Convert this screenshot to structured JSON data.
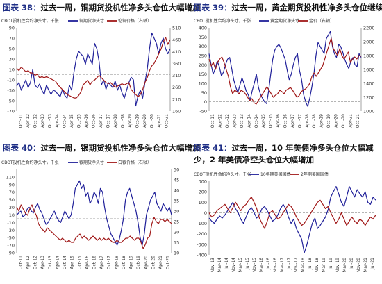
{
  "chart_data": [
    {
      "type": "line",
      "title_prefix": "图表 38：",
      "title": "过去一周，铜期货投机性净多头仓位大幅增加",
      "ylabel": "CBOT投机性合约净头寸，千张",
      "legend": [
        "铜期货净头寸",
        "伦铜价格（右轴）"
      ],
      "legend_position": "top-right",
      "ylim": [
        -70,
        90
      ],
      "yticks": [
        90,
        70,
        50,
        30,
        10,
        -10,
        -30,
        -50,
        -70
      ],
      "y2lim": [
        160,
        510
      ],
      "y2ticks": [
        510,
        460,
        410,
        360,
        310,
        260,
        210,
        160
      ],
      "x_ticks": [
        "Oct-11",
        "Apr-12",
        "Oct-12",
        "Apr-13",
        "Oct-13",
        "Apr-14",
        "Oct-14",
        "Apr-15",
        "Oct-15",
        "Apr-16",
        "Oct-16",
        "Apr-17",
        "Oct-17",
        "Apr-18",
        "Oct-18",
        "Apr-19",
        "Oct-19",
        "Apr-20",
        "Oct-20",
        "Apr-21",
        "Oct-21"
      ],
      "series": [
        {
          "name": "铜期货净头寸",
          "axis": "left",
          "color": "#1f1f99",
          "values": [
            -22,
            -15,
            -30,
            -20,
            -10,
            -25,
            -15,
            10,
            -20,
            -25,
            -18,
            -30,
            -38,
            -20,
            -30,
            -38,
            -30,
            -32,
            -38,
            -42,
            -28,
            -40,
            -45,
            -20,
            -30,
            5,
            30,
            45,
            40,
            35,
            20,
            40,
            30,
            20,
            60,
            50,
            25,
            -20,
            -10,
            -28,
            -15,
            -20,
            -25,
            -12,
            -30,
            -20,
            -35,
            -45,
            -30,
            -15,
            -5,
            -10,
            -60,
            -40,
            -30,
            -45,
            -15,
            10,
            50,
            80,
            70,
            60,
            40,
            60,
            70,
            50,
            40,
            50
          ]
        },
        {
          "name": "伦铜价格（右轴）",
          "axis": "right",
          "color": "#a01818",
          "values": [
            340,
            330,
            345,
            335,
            325,
            330,
            320,
            320,
            310,
            315,
            300,
            305,
            300,
            305,
            300,
            295,
            290,
            285,
            270,
            260,
            250,
            240,
            230,
            225,
            220,
            215,
            215,
            225,
            240,
            270,
            280,
            290,
            270,
            285,
            290,
            300,
            310,
            300,
            290,
            280,
            275,
            280,
            270,
            260,
            265,
            270,
            275,
            270,
            275,
            280,
            250,
            240,
            230,
            220,
            230,
            250,
            280,
            300,
            330,
            350,
            360,
            380,
            400,
            420,
            450,
            470,
            440,
            460
          ]
        }
      ]
    },
    {
      "type": "line",
      "title_prefix": "图表 39：",
      "title": "过去一周，黄金期货投机性净多头仓位继续增加",
      "ylabel": "CBOT投机性合约净头寸，千张",
      "legend": [
        "黄金期货净头寸",
        "金价（右轴）"
      ],
      "legend_position": "top-right",
      "ylim": [
        -50,
        400
      ],
      "yticks": [
        400,
        350,
        300,
        250,
        200,
        150,
        100,
        50,
        0,
        -50
      ],
      "y2lim": [
        1000,
        2200
      ],
      "y2ticks": [
        2200,
        2000,
        1800,
        1600,
        1400,
        1200,
        1000
      ],
      "x_ticks": [
        "Oct-11",
        "Apr-12",
        "Oct-12",
        "Apr-13",
        "Oct-13",
        "Apr-14",
        "Oct-14",
        "Apr-15",
        "Oct-15",
        "Apr-16",
        "Oct-16",
        "Apr-17",
        "Oct-17",
        "Apr-18",
        "Oct-18",
        "Apr-19",
        "Oct-19",
        "Apr-20",
        "Oct-20",
        "Apr-21",
        "Oct-21"
      ],
      "series": [
        {
          "name": "黄金期货净头寸",
          "axis": "left",
          "color": "#1f1f99",
          "values": [
            260,
            200,
            150,
            180,
            220,
            190,
            140,
            160,
            200,
            230,
            240,
            180,
            120,
            80,
            50,
            90,
            130,
            100,
            60,
            40,
            10,
            60,
            100,
            150,
            80,
            40,
            20,
            0,
            -10,
            60,
            150,
            230,
            280,
            300,
            310,
            290,
            260,
            230,
            170,
            120,
            150,
            200,
            240,
            260,
            170,
            120,
            40,
            0,
            -25,
            20,
            80,
            150,
            250,
            320,
            300,
            280,
            260,
            340,
            360,
            380,
            300,
            260,
            240,
            310,
            300,
            270,
            230,
            200,
            180,
            220,
            240,
            200,
            190,
            260,
            240
          ]
        },
        {
          "name": "金价（右轴）",
          "axis": "right",
          "color": "#a01818",
          "values": [
            1750,
            1650,
            1700,
            1600,
            1700,
            1750,
            1780,
            1700,
            1600,
            1500,
            1350,
            1250,
            1300,
            1280,
            1250,
            1300,
            1280,
            1250,
            1200,
            1150,
            1180,
            1120,
            1100,
            1150,
            1200,
            1250,
            1300,
            1350,
            1300,
            1250,
            1200,
            1230,
            1250,
            1300,
            1280,
            1250,
            1300,
            1320,
            1340,
            1300,
            1250,
            1200,
            1220,
            1280,
            1300,
            1320,
            1350,
            1400,
            1500,
            1550,
            1500,
            1550,
            1600,
            1650,
            1750,
            1850,
            1950,
            2050,
            1900,
            1850,
            1800,
            1900,
            1800,
            1750,
            1800,
            1850,
            1700,
            1750,
            1780,
            1750,
            1800,
            1790
          ]
        }
      ]
    },
    {
      "type": "line",
      "title_prefix": "图表 40：",
      "title": "过去一周，银期货投机性净多头仓位大幅增加",
      "ylabel": "CBOT投机性合约净头寸，千张",
      "legend": [
        "银期货净头寸",
        "白银价格（右轴）"
      ],
      "legend_position": "top-right",
      "ylim": [
        -90,
        130
      ],
      "yticks": [
        110,
        90,
        70,
        50,
        30,
        10,
        -10,
        -30,
        -50,
        -70,
        -90
      ],
      "y2lim": [
        10,
        50
      ],
      "y2ticks": [
        50,
        45,
        40,
        35,
        30,
        25,
        20,
        15,
        10
      ],
      "x_ticks": [
        "Oct-11",
        "Apr-12",
        "Oct-12",
        "Apr-13",
        "Oct-13",
        "Apr-14",
        "Oct-14",
        "Apr-15",
        "Oct-15",
        "Apr-16",
        "Oct-16",
        "Apr-17",
        "Oct-17",
        "Apr-18",
        "Oct-18",
        "Apr-19",
        "Oct-19",
        "Apr-20",
        "Oct-20",
        "Apr-21",
        "Oct-21"
      ],
      "series": [
        {
          "name": "银期货净头寸",
          "axis": "left",
          "color": "#1f1f99",
          "values": [
            10,
            15,
            20,
            5,
            10,
            25,
            30,
            20,
            15,
            30,
            40,
            25,
            15,
            0,
            -15,
            -10,
            0,
            10,
            20,
            5,
            -5,
            -10,
            5,
            20,
            10,
            0,
            10,
            40,
            80,
            90,
            100,
            80,
            90,
            60,
            70,
            40,
            50,
            70,
            60,
            40,
            80,
            70,
            30,
            0,
            -20,
            -40,
            -50,
            -60,
            -70,
            -55,
            -30,
            0,
            50,
            70,
            80,
            60,
            40,
            20,
            -10,
            -50,
            -70,
            -40,
            10,
            30,
            50,
            60,
            70,
            40,
            30,
            20,
            40,
            30,
            20,
            30,
            10
          ]
        },
        {
          "name": "白银价格（右轴）",
          "axis": "right",
          "color": "#a01818",
          "values": [
            32,
            30,
            33,
            31,
            29,
            28,
            31,
            33,
            30,
            28,
            24,
            22,
            21,
            20,
            22,
            21,
            20,
            19,
            18,
            17,
            16,
            17,
            16,
            15,
            16,
            15,
            15,
            17,
            18,
            19,
            17,
            18,
            17,
            16,
            17,
            18,
            17,
            16,
            17,
            16,
            17,
            16,
            17,
            16,
            15,
            15,
            16,
            15,
            15,
            16,
            17,
            17,
            18,
            17,
            16,
            17,
            17,
            15,
            12,
            14,
            17,
            18,
            24,
            27,
            25,
            24,
            26,
            26,
            25,
            26,
            25,
            24
          ]
        }
      ]
    },
    {
      "type": "line",
      "title_prefix": "图表 41：",
      "title": "过去一周，10 年美债净多头仓位大幅减少，2 年美债净空头仓位大幅增加",
      "ylabel": "CBOT投机性合约净头寸，千张",
      "legend": [
        "10年期美国国债",
        "2年期美国国债"
      ],
      "legend_position": "top-right",
      "ylim": [
        -400,
        300
      ],
      "yticks": [
        300,
        200,
        100,
        0,
        -100,
        -200,
        -300,
        -400
      ],
      "x_ticks": [
        "Nov-13",
        "Mar-14",
        "Jul-14",
        "Nov-14",
        "Mar-15",
        "Jul-15",
        "Nov-15",
        "Mar-16",
        "Jul-16",
        "Nov-16",
        "Mar-17",
        "Jul-17",
        "Nov-17",
        "Mar-18",
        "Jul-18",
        "Nov-18",
        "Mar-19",
        "Jul-19",
        "Nov-19",
        "Mar-20",
        "Jul-20",
        "Nov-20",
        "Mar-21",
        "Jul-21"
      ],
      "series": [
        {
          "name": "10年期美国国债",
          "axis": "left",
          "color": "#1f1f99",
          "values": [
            -50,
            -80,
            -100,
            -60,
            -30,
            -50,
            -20,
            20,
            60,
            100,
            40,
            0,
            -60,
            -100,
            -40,
            20,
            50,
            0,
            -50,
            -20,
            40,
            60,
            20,
            -30,
            -80,
            -60,
            -20,
            40,
            80,
            40,
            -40,
            -100,
            -60,
            -150,
            -200,
            -250,
            -380,
            -300,
            -200,
            -100,
            -50,
            -150,
            -120,
            -80,
            -40,
            30,
            150,
            200,
            250,
            180,
            100,
            60,
            150,
            250,
            200,
            150,
            220,
            180,
            150,
            200,
            100,
            80,
            150,
            120
          ]
        },
        {
          "name": "2年期美国国债",
          "axis": "left",
          "color": "#a01818",
          "values": [
            0,
            -40,
            -20,
            20,
            40,
            60,
            80,
            40,
            0,
            50,
            100,
            60,
            20,
            60,
            80,
            120,
            150,
            100,
            40,
            -50,
            -100,
            -150,
            -80,
            0,
            20,
            -20,
            -60,
            -40,
            0,
            40,
            80,
            60,
            20,
            -40,
            -80,
            -120,
            -100,
            -60,
            -20,
            20,
            60,
            100,
            120,
            80,
            40,
            60,
            0,
            -50,
            -100,
            -60,
            0,
            -60,
            -120,
            -80,
            -40,
            -80,
            -100,
            -60,
            -80,
            -120,
            -80,
            -40,
            -60,
            -20
          ]
        }
      ]
    }
  ]
}
